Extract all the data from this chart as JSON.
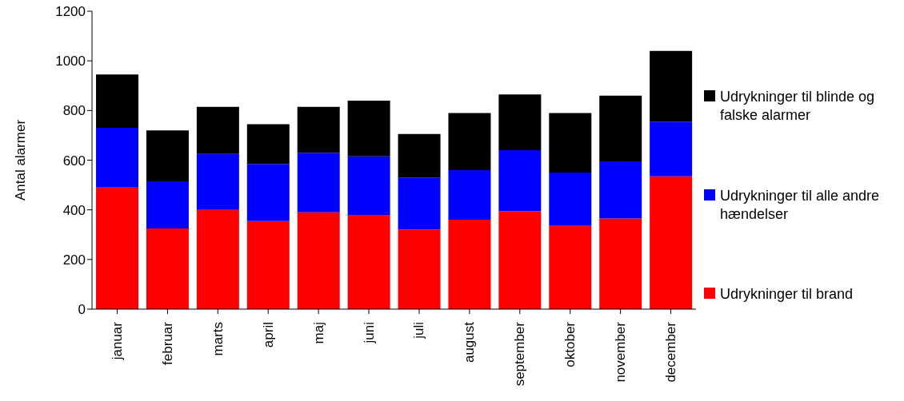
{
  "chart_data": {
    "type": "bar",
    "stacked": true,
    "ylabel": "Antal alarmer",
    "categories": [
      "januar",
      "februar",
      "marts",
      "april",
      "maj",
      "juni",
      "juli",
      "august",
      "september",
      "oktober",
      "november",
      "december"
    ],
    "series": [
      {
        "name": "Udrykninger til brand",
        "color": "#ff0000",
        "values": [
          490,
          325,
          400,
          355,
          390,
          380,
          320,
          360,
          395,
          335,
          365,
          535
        ]
      },
      {
        "name": "Udrykninger til alle andre hændelser",
        "color": "#0000ff",
        "values": [
          240,
          190,
          225,
          230,
          240,
          235,
          210,
          200,
          245,
          215,
          230,
          220
        ]
      },
      {
        "name": "Udrykninger til blinde og falske alarmer",
        "color": "#000000",
        "values": [
          215,
          205,
          190,
          160,
          185,
          225,
          175,
          230,
          225,
          240,
          265,
          285
        ]
      }
    ],
    "ylim": [
      0,
      1200
    ],
    "yticks": [
      0,
      200,
      400,
      600,
      800,
      1000,
      1200
    ],
    "grid": false,
    "legend": "right"
  }
}
